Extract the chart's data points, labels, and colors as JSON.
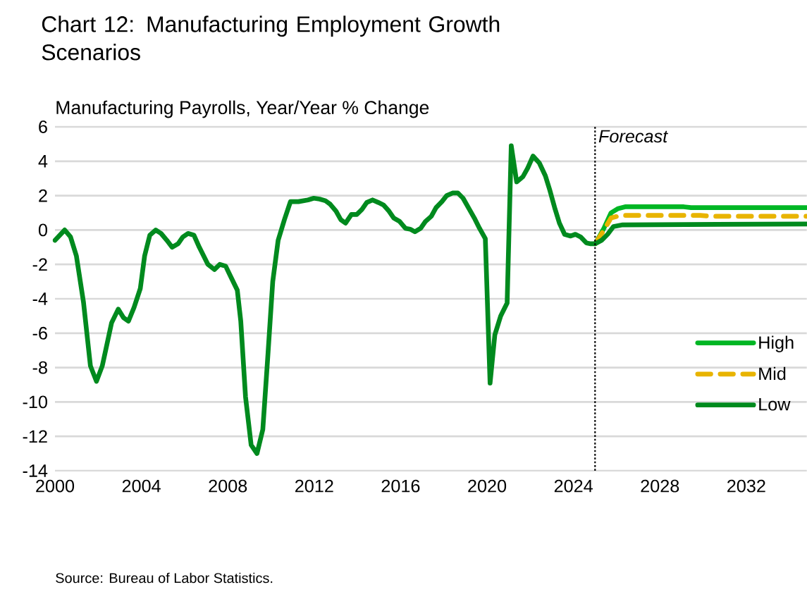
{
  "chart_data": {
    "type": "line",
    "title": "Chart 12: Manufacturing Employment Growth Scenarios",
    "ylabel": "Manufacturing Payrolls, Year/Year % Change",
    "annotations": [
      "Source: Bureau of Labor Statistics."
    ],
    "xlim": [
      2000,
      2034.8
    ],
    "xticks": [
      2000,
      2004,
      2008,
      2012,
      2016,
      2020,
      2024,
      2028,
      2032
    ],
    "ylim": [
      -14,
      6
    ],
    "yticks": [
      -14,
      -12,
      -10,
      -8,
      -6,
      -4,
      -2,
      0,
      2,
      4,
      6
    ],
    "grid": "y",
    "legend": "right",
    "ref_lines": [
      {
        "axis": "x",
        "value": 2025,
        "label": "Forecast",
        "color": "#000000",
        "line_style": "dotted"
      }
    ],
    "series": [
      {
        "name": "High",
        "color": "#00b624",
        "line_style": "solid",
        "x": [
          2025.01,
          2025.41,
          2025.74,
          2026.07,
          2026.39,
          2029.11,
          2029.44,
          2034.8
        ],
        "values": [
          -0.8,
          0.1,
          1.0,
          1.25,
          1.35,
          1.35,
          1.3,
          1.3
        ]
      },
      {
        "name": "Mid",
        "color": "#e8b400",
        "line_style": "dashed",
        "x": [
          2025.01,
          2025.41,
          2025.74,
          2026.18,
          2029.87,
          2030.31,
          2034.8
        ],
        "values": [
          -0.8,
          0.0,
          0.7,
          0.85,
          0.85,
          0.8,
          0.8
        ]
      },
      {
        "name": "Low",
        "color": "#008a1e",
        "line_style": "solid",
        "x": [
          2000.0,
          2000.3,
          2000.45,
          2000.72,
          2000.99,
          2001.32,
          2001.64,
          2001.92,
          2002.19,
          2002.62,
          2002.93,
          2003.17,
          2003.4,
          2003.66,
          2003.95,
          2004.15,
          2004.39,
          2004.66,
          2004.91,
          2005.18,
          2005.42,
          2005.7,
          2005.92,
          2006.16,
          2006.43,
          2006.68,
          2007.08,
          2007.38,
          2007.63,
          2007.9,
          2008.17,
          2008.44,
          2008.6,
          2008.82,
          2009.08,
          2009.35,
          2009.62,
          2009.86,
          2010.08,
          2010.33,
          2010.62,
          2010.9,
          2011.27,
          2011.71,
          2011.98,
          2012.25,
          2012.52,
          2012.74,
          2013.01,
          2013.23,
          2013.45,
          2013.72,
          2013.97,
          2014.21,
          2014.43,
          2014.7,
          2014.97,
          2015.21,
          2015.46,
          2015.68,
          2015.95,
          2016.22,
          2016.44,
          2016.66,
          2016.93,
          2017.15,
          2017.42,
          2017.64,
          2017.91,
          2018.13,
          2018.4,
          2018.65,
          2018.89,
          2019.16,
          2019.41,
          2019.65,
          2019.92,
          2020.14,
          2020.36,
          2020.63,
          2020.93,
          2021.12,
          2021.37,
          2021.66,
          2021.88,
          2022.13,
          2022.42,
          2022.7,
          2022.91,
          2023.13,
          2023.35,
          2023.59,
          2023.87,
          2024.09,
          2024.33,
          2024.6,
          2024.8,
          2025.01,
          2025.3,
          2025.58,
          2025.85,
          2026.28,
          2034.8
        ],
        "values": [
          -0.6,
          -0.2,
          0,
          -0.4,
          -1.5,
          -4.2,
          -7.9,
          -8.8,
          -7.9,
          -5.4,
          -4.6,
          -5.1,
          -5.3,
          -4.5,
          -3.4,
          -1.5,
          -0.3,
          0,
          -0.2,
          -0.6,
          -1.0,
          -0.8,
          -0.4,
          -0.2,
          -0.3,
          -1.0,
          -2.0,
          -2.3,
          -2.0,
          -2.1,
          -2.8,
          -3.5,
          -5.3,
          -9.7,
          -12.5,
          -13.0,
          -11.6,
          -7.2,
          -3.0,
          -0.6,
          0.6,
          1.65,
          1.65,
          1.75,
          1.85,
          1.8,
          1.7,
          1.5,
          1.1,
          0.6,
          0.4,
          0.9,
          0.9,
          1.2,
          1.6,
          1.75,
          1.6,
          1.45,
          1.1,
          0.7,
          0.5,
          0.1,
          0.05,
          -0.1,
          0.1,
          0.5,
          0.8,
          1.3,
          1.65,
          2.0,
          2.15,
          2.15,
          1.85,
          1.25,
          0.7,
          0.1,
          -0.5,
          -8.9,
          -6.1,
          -5.0,
          -4.25,
          4.9,
          2.8,
          3.1,
          3.6,
          4.3,
          3.9,
          3.15,
          2.3,
          1.3,
          0.4,
          -0.25,
          -0.35,
          -0.25,
          -0.4,
          -0.75,
          -0.8,
          -0.8,
          -0.6,
          -0.25,
          0.2,
          0.3,
          0.35
        ]
      }
    ]
  }
}
